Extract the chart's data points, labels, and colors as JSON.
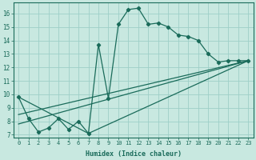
{
  "xlabel": "Humidex (Indice chaleur)",
  "bg_color": "#c8e8e0",
  "grid_color": "#9ecfc8",
  "line_color": "#1a6b5a",
  "xlim": [
    -0.5,
    23.5
  ],
  "ylim": [
    6.8,
    16.8
  ],
  "yticks": [
    7,
    8,
    9,
    10,
    11,
    12,
    13,
    14,
    15,
    16
  ],
  "xticks": [
    0,
    1,
    2,
    3,
    4,
    5,
    6,
    7,
    8,
    9,
    10,
    11,
    12,
    13,
    14,
    15,
    16,
    17,
    18,
    19,
    20,
    21,
    22,
    23
  ],
  "xtick_labels": [
    "0",
    "1",
    "2",
    "3",
    "4",
    "5",
    "6",
    "7",
    "8",
    "9",
    "10",
    "11",
    "12",
    "13",
    "14",
    "15",
    "16",
    "17",
    "18",
    "19",
    "20",
    "21",
    "22",
    "23"
  ],
  "line1_x": [
    0,
    1,
    2,
    3,
    4,
    5,
    6,
    7,
    8,
    9,
    10,
    11,
    12,
    13,
    14,
    15,
    16,
    17,
    18,
    19,
    20,
    21,
    22,
    23
  ],
  "line1_y": [
    9.8,
    8.2,
    7.2,
    7.5,
    8.2,
    7.4,
    8.0,
    7.1,
    13.7,
    9.7,
    15.2,
    16.3,
    16.4,
    15.2,
    15.3,
    15.0,
    14.4,
    14.3,
    14.0,
    13.0,
    12.4,
    12.5,
    12.5,
    12.5
  ],
  "line2_x": [
    0,
    7,
    23
  ],
  "line2_y": [
    9.8,
    7.1,
    12.5
  ],
  "line3_x": [
    0,
    23
  ],
  "line3_y": [
    8.5,
    12.5
  ],
  "line4_x": [
    0,
    23
  ],
  "line4_y": [
    7.8,
    12.5
  ]
}
